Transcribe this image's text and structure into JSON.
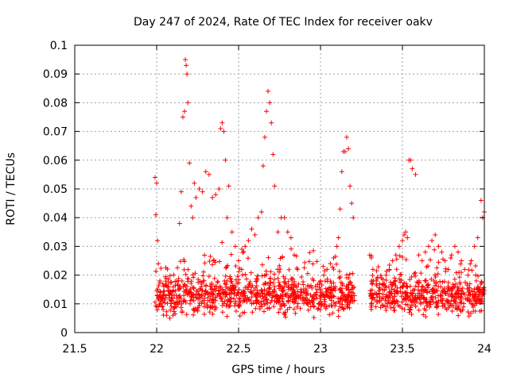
{
  "chart_data": {
    "type": "scatter",
    "title": "Day 247 of 2024, Rate Of TEC Index for receiver oakv",
    "xlabel": "GPS time / hours",
    "ylabel": "ROTI / TECUs",
    "xlim": [
      21.5,
      24
    ],
    "ylim": [
      0,
      0.1
    ],
    "xticks": [
      21.5,
      22,
      22.5,
      23,
      23.5,
      24
    ],
    "xtick_labels": [
      "21.5",
      "22",
      "22.5",
      "23",
      "23.5",
      "24"
    ],
    "yticks": [
      0,
      0.01,
      0.02,
      0.03,
      0.04,
      0.05,
      0.06,
      0.07,
      0.08,
      0.09,
      0.1
    ],
    "ytick_labels": [
      "0",
      "0.01",
      "0.02",
      "0.03",
      "0.04",
      "0.05",
      "0.06",
      "0.07",
      "0.08",
      "0.09",
      "0.1"
    ],
    "grid": true,
    "marker": "+",
    "color": "#ff0000",
    "series": [
      {
        "name": "ROTI",
        "x": [
          21.99,
          21.995,
          22.0,
          22.005,
          22.01,
          22.02,
          22.03,
          22.04,
          22.06,
          22.08,
          22.1,
          22.12,
          22.14,
          22.15,
          22.16,
          22.17,
          22.175,
          22.18,
          22.185,
          22.19,
          22.2,
          22.21,
          22.22,
          22.23,
          22.24,
          22.26,
          22.28,
          22.3,
          22.32,
          22.34,
          22.36,
          22.38,
          22.39,
          22.4,
          22.41,
          22.42,
          22.43,
          22.44,
          22.46,
          22.48,
          22.5,
          22.52,
          22.54,
          22.56,
          22.58,
          22.6,
          22.62,
          22.64,
          22.65,
          22.66,
          22.67,
          22.68,
          22.69,
          22.7,
          22.71,
          22.72,
          22.74,
          22.76,
          22.78,
          22.8,
          22.82,
          22.84,
          22.86,
          22.88,
          22.9,
          22.92,
          22.94,
          22.96,
          22.98,
          23.0,
          23.02,
          23.04,
          23.06,
          23.08,
          23.1,
          23.11,
          23.12,
          23.13,
          23.14,
          23.15,
          23.16,
          23.17,
          23.18,
          23.19,
          23.2,
          23.3,
          23.31,
          23.32,
          23.34,
          23.36,
          23.38,
          23.4,
          23.42,
          23.44,
          23.46,
          23.48,
          23.5,
          23.51,
          23.52,
          23.53,
          23.54,
          23.55,
          23.56,
          23.58,
          23.6,
          23.62,
          23.64,
          23.66,
          23.68,
          23.7,
          23.72,
          23.74,
          23.76,
          23.78,
          23.8,
          23.82,
          23.84,
          23.86,
          23.88,
          23.9,
          23.92,
          23.94,
          23.96,
          23.98,
          23.99,
          24.0
        ],
        "y": [
          0.054,
          0.041,
          0.052,
          0.032,
          0.024,
          0.018,
          0.012,
          0.008,
          0.006,
          0.005,
          0.006,
          0.009,
          0.038,
          0.049,
          0.075,
          0.077,
          0.095,
          0.093,
          0.09,
          0.08,
          0.059,
          0.044,
          0.04,
          0.052,
          0.047,
          0.05,
          0.049,
          0.056,
          0.055,
          0.047,
          0.048,
          0.05,
          0.071,
          0.073,
          0.07,
          0.06,
          0.04,
          0.051,
          0.035,
          0.03,
          0.025,
          0.029,
          0.03,
          0.032,
          0.036,
          0.034,
          0.04,
          0.042,
          0.058,
          0.068,
          0.077,
          0.084,
          0.08,
          0.073,
          0.062,
          0.051,
          0.035,
          0.04,
          0.04,
          0.035,
          0.033,
          0.027,
          0.022,
          0.015,
          0.014,
          0.01,
          0.009,
          0.012,
          0.015,
          0.018,
          0.02,
          0.022,
          0.024,
          0.026,
          0.03,
          0.033,
          0.043,
          0.056,
          0.063,
          0.063,
          0.068,
          0.064,
          0.051,
          0.045,
          0.04,
          0.027,
          0.026,
          0.022,
          0.018,
          0.017,
          0.015,
          0.02,
          0.022,
          0.025,
          0.027,
          0.03,
          0.032,
          0.034,
          0.035,
          0.033,
          0.06,
          0.06,
          0.057,
          0.055,
          0.027,
          0.025,
          0.028,
          0.03,
          0.032,
          0.034,
          0.03,
          0.028,
          0.025,
          0.022,
          0.027,
          0.03,
          0.028,
          0.025,
          0.022,
          0.02,
          0.025,
          0.03,
          0.033,
          0.046,
          0.04,
          0.042
        ]
      }
    ],
    "noise_band": {
      "x_ranges": [
        [
          21.99,
          23.21
        ],
        [
          23.3,
          24.0
        ]
      ],
      "y_min": 0.004,
      "y_max": 0.022,
      "count": 1400
    }
  }
}
